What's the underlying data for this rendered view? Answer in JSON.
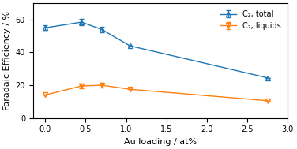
{
  "chart_data": {
    "type": "line",
    "xlabel": "Au loading / at%",
    "ylabel": "Faradaic Efficiency / %",
    "x": [
      0.0,
      0.45,
      0.7,
      1.05,
      2.75
    ],
    "series": [
      {
        "name": "C₂, total",
        "values": [
          55.0,
          58.5,
          54.0,
          44.0,
          24.5
        ],
        "errors": [
          1.5,
          2.0,
          1.5,
          0,
          0
        ],
        "marker": "triangle_up",
        "line_style": "solid"
      },
      {
        "name": "C₂, liquids",
        "values": [
          14.0,
          19.5,
          20.0,
          17.5,
          10.5
        ],
        "errors": [
          0,
          1.5,
          1.5,
          0,
          0
        ],
        "marker": "triangle_down",
        "line_style": "solid"
      }
    ],
    "xlim": [
      -0.15,
      3.0
    ],
    "ylim": [
      0,
      70
    ],
    "xticks": [
      {
        "value": 0.0,
        "label": "0.0"
      },
      {
        "value": 0.5,
        "label": "0.5"
      },
      {
        "value": 1.0,
        "label": "1.0"
      },
      {
        "value": 1.5,
        "label": "1.5"
      },
      {
        "value": 2.0,
        "label": "2.0"
      },
      {
        "value": 2.5,
        "label": "2.5"
      },
      {
        "value": 3.0,
        "label": "3.0"
      }
    ],
    "yticks": [
      0,
      20,
      40,
      60
    ],
    "legend": "upper right",
    "grid": false
  }
}
